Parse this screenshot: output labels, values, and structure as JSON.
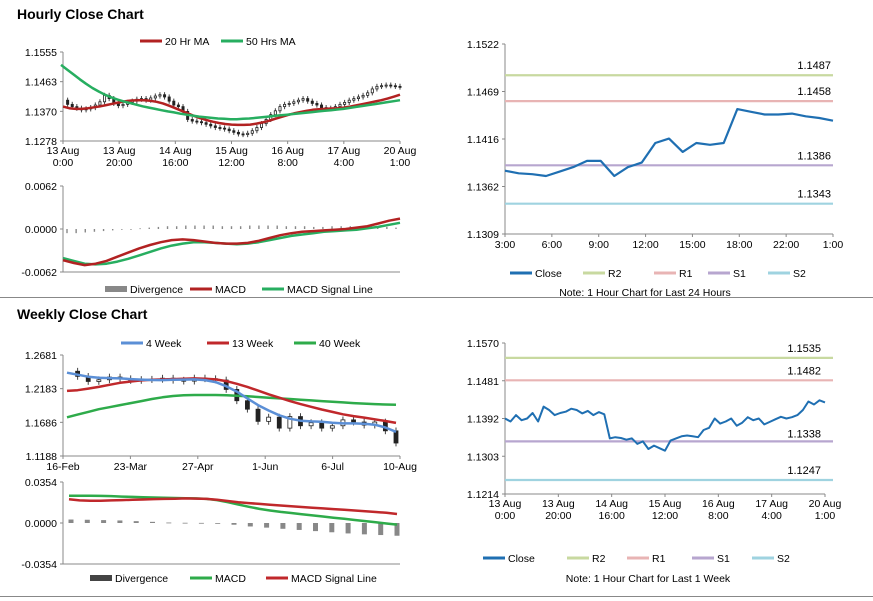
{
  "titles": {
    "hourly": "Hourly Close Chart",
    "weekly": "Weekly Close Chart"
  },
  "colors": {
    "ma20": "#b22222",
    "ma50": "#27ae60",
    "close": "#1f6fb2",
    "candle": "#444444",
    "r2": "#c8d9a0",
    "r1": "#e8b4b4",
    "s1": "#b7a6cf",
    "s2": "#9fd3e0",
    "divergence": "#888888",
    "week4": "#5b8fd6",
    "week13": "#c0282b",
    "week40": "#2eab4a"
  },
  "chart_data": [
    {
      "id": "hourly_price",
      "type": "candlestick+line",
      "title": "Hourly Close Chart",
      "y_ticks": [
        "1.1555",
        "1.1463",
        "1.1370",
        "1.1278"
      ],
      "ylim": [
        1.1278,
        1.1555
      ],
      "x_ticks": [
        [
          "13 Aug",
          "0:00"
        ],
        [
          "13 Aug",
          "20:00"
        ],
        [
          "14 Aug",
          "16:00"
        ],
        [
          "15 Aug",
          "12:00"
        ],
        [
          "16 Aug",
          "8:00"
        ],
        [
          "17 Aug",
          "4:00"
        ],
        [
          "20 Aug",
          "1:00"
        ]
      ],
      "legend": [
        "20 Hr MA",
        "50 Hrs MA"
      ],
      "close": [
        1.1405,
        1.1392,
        1.1385,
        1.138,
        1.1375,
        1.1378,
        1.1382,
        1.139,
        1.14,
        1.142,
        1.141,
        1.1395,
        1.1388,
        1.1392,
        1.1398,
        1.1402,
        1.1408,
        1.141,
        1.1405,
        1.1412,
        1.1418,
        1.1422,
        1.1415,
        1.1402,
        1.139,
        1.1385,
        1.137,
        1.1345,
        1.134,
        1.1338,
        1.1335,
        1.133,
        1.1325,
        1.132,
        1.1318,
        1.1315,
        1.131,
        1.1305,
        1.13,
        1.1298,
        1.1302,
        1.131,
        1.132,
        1.1332,
        1.1345,
        1.136,
        1.1372,
        1.1385,
        1.1392,
        1.1395,
        1.14,
        1.1405,
        1.141,
        1.1402,
        1.1395,
        1.139,
        1.1382,
        1.1378,
        1.138,
        1.1385,
        1.1392,
        1.1398,
        1.1405,
        1.141,
        1.1415,
        1.142,
        1.1428,
        1.144,
        1.1448,
        1.145,
        1.1452,
        1.145,
        1.1448,
        1.1446
      ],
      "ma20": [
        1.1385,
        1.138,
        1.1378,
        1.1378,
        1.138,
        1.1383,
        1.1386,
        1.139,
        1.1394,
        1.1398,
        1.1402,
        1.1404,
        1.1405,
        1.1405,
        1.1403,
        1.14,
        1.1395,
        1.1388,
        1.138,
        1.1372,
        1.1364,
        1.1356,
        1.1349,
        1.1343,
        1.1338,
        1.1334,
        1.1331,
        1.1329,
        1.1328,
        1.1328,
        1.1329,
        1.1332,
        1.1336,
        1.1341,
        1.1347,
        1.1353,
        1.1359,
        1.1364,
        1.1368,
        1.1372,
        1.1375,
        1.1377,
        1.1378,
        1.1379,
        1.138,
        1.1382,
        1.1385,
        1.1389,
        1.1393,
        1.1397,
        1.1401,
        1.1405,
        1.141,
        1.1416,
        1.1422
      ],
      "ma50": [
        1.1515,
        1.15,
        1.1485,
        1.147,
        1.1456,
        1.1443,
        1.1432,
        1.1422,
        1.1414,
        1.1407,
        1.1401,
        1.1396,
        1.1391,
        1.1386,
        1.1382,
        1.1378,
        1.1374,
        1.137,
        1.1367,
        1.1363,
        1.136,
        1.1357,
        1.1354,
        1.1352,
        1.135,
        1.1348,
        1.1347,
        1.1346,
        1.1346,
        1.1347,
        1.1348,
        1.135,
        1.1352,
        1.1354,
        1.1356,
        1.1358,
        1.136,
        1.1362,
        1.1364,
        1.1366,
        1.1368,
        1.137,
        1.1372,
        1.1374,
        1.1376,
        1.1378,
        1.1381,
        1.1384,
        1.1387,
        1.139,
        1.1393,
        1.1396,
        1.1399,
        1.1402,
        1.1405
      ]
    },
    {
      "id": "hourly_macd",
      "type": "bar+line",
      "y_ticks": [
        "0.0062",
        "0.0000",
        "-0.0062"
      ],
      "ylim": [
        -0.0062,
        0.0062
      ],
      "legend": [
        "Divergence",
        "MACD",
        "MACD Signal Line"
      ],
      "macd": [
        -0.0045,
        -0.0049,
        -0.0052,
        -0.005,
        -0.0046,
        -0.004,
        -0.0034,
        -0.0028,
        -0.0023,
        -0.0019,
        -0.0016,
        -0.0015,
        -0.0016,
        -0.0018,
        -0.002,
        -0.0021,
        -0.0021,
        -0.002,
        -0.0017,
        -0.0013,
        -0.0009,
        -0.0006,
        -0.0004,
        -0.0003,
        -0.0002,
        -0.0001,
        0.0,
        0.0002,
        0.0004,
        0.0008,
        0.0012,
        0.0015
      ],
      "signal": [
        -0.0042,
        -0.0046,
        -0.005,
        -0.0051,
        -0.005,
        -0.0047,
        -0.0043,
        -0.0038,
        -0.0033,
        -0.0028,
        -0.0024,
        -0.0021,
        -0.0019,
        -0.0019,
        -0.002,
        -0.0021,
        -0.0022,
        -0.0021,
        -0.0019,
        -0.0016,
        -0.0013,
        -0.001,
        -0.0008,
        -0.0006,
        -0.0004,
        -0.0003,
        -0.0002,
        -0.0001,
        0.0001,
        0.0003,
        0.0006,
        0.0009
      ],
      "divergence": [
        -0.0006,
        -0.0006,
        -0.0005,
        -0.0004,
        -0.0003,
        -0.0002,
        -0.0001,
        0.0,
        0.0001,
        0.0002,
        0.0003,
        0.0004,
        0.0004,
        0.0005,
        0.0005,
        0.0005,
        0.0005,
        0.0004,
        0.0004,
        0.0004,
        0.0005,
        0.0005,
        0.0005,
        0.0005,
        0.0004,
        0.0004,
        0.0004,
        0.0003,
        0.0003,
        0.0004,
        0.0004,
        0.0004,
        0.0003,
        0.0003,
        0.0003,
        0.0003,
        0.0002
      ]
    },
    {
      "id": "hourly_pivot",
      "type": "line",
      "y_ticks": [
        "1.1522",
        "1.1469",
        "1.1416",
        "1.1362",
        "1.1309"
      ],
      "ylim": [
        1.1309,
        1.1522
      ],
      "x_ticks": [
        "3:00",
        "6:00",
        "9:00",
        "12:00",
        "15:00",
        "18:00",
        "22:00",
        "1:00"
      ],
      "close": [
        1.138,
        1.1377,
        1.1376,
        1.1374,
        1.1379,
        1.1384,
        1.1391,
        1.1391,
        1.1374,
        1.1384,
        1.1389,
        1.1411,
        1.1416,
        1.1401,
        1.1411,
        1.1409,
        1.1411,
        1.1449,
        1.1446,
        1.1443,
        1.1443,
        1.1444,
        1.1441,
        1.1439,
        1.1436
      ],
      "levels": {
        "R2": 1.1487,
        "R1": 1.1458,
        "S1": 1.1386,
        "S2": 1.1343
      },
      "level_labels": {
        "R2": "1.1487",
        "R1": "1.1458",
        "S1": "1.1386",
        "S2": "1.1343"
      },
      "legend": [
        "Close",
        "R2",
        "R1",
        "S1",
        "S2"
      ],
      "note": "Note: 1 Hour Chart for Last 24 Hours"
    },
    {
      "id": "weekly_price",
      "type": "candlestick+line",
      "title": "Weekly Close Chart",
      "y_ticks": [
        "1.2681",
        "1.2183",
        "1.1686",
        "1.1188"
      ],
      "ylim": [
        1.1188,
        1.2681
      ],
      "x_ticks": [
        "16-Feb",
        "23-Mar",
        "27-Apr",
        "1-Jun",
        "6-Jul",
        "10-Aug"
      ],
      "legend": [
        "4 Week",
        "13 Week",
        "40 Week"
      ],
      "close": [
        1.2441,
        1.2365,
        1.229,
        1.2315,
        1.2355,
        1.233,
        1.2305,
        1.2318,
        1.2322,
        1.2338,
        1.2308,
        1.2295,
        1.234,
        1.233,
        1.2311,
        1.2172,
        1.2005,
        1.188,
        1.17,
        1.1762,
        1.16,
        1.1771,
        1.1635,
        1.168,
        1.16,
        1.1635,
        1.1722,
        1.169,
        1.1645,
        1.169,
        1.156,
        1.138
      ],
      "week4": [
        1.242,
        1.239,
        1.236,
        1.2345,
        1.234,
        1.2335,
        1.2325,
        1.2318,
        1.2312,
        1.231,
        1.2315,
        1.2318,
        1.232,
        1.231,
        1.228,
        1.222,
        1.214,
        1.204,
        1.194,
        1.186,
        1.179,
        1.174,
        1.171,
        1.17,
        1.1695,
        1.168,
        1.167,
        1.167,
        1.1665,
        1.165,
        1.161,
        1.1545
      ],
      "week13": [
        1.215,
        1.216,
        1.2185,
        1.221,
        1.224,
        1.227,
        1.229,
        1.2305,
        1.2315,
        1.232,
        1.2325,
        1.233,
        1.2335,
        1.233,
        1.232,
        1.2295,
        1.2255,
        1.221,
        1.2155,
        1.21,
        1.205,
        1.2,
        1.1955,
        1.1915,
        1.1875,
        1.184,
        1.1805,
        1.1778,
        1.1755,
        1.173,
        1.1705,
        1.1678
      ],
      "week40": [
        1.176,
        1.18,
        1.184,
        1.188,
        1.191,
        1.194,
        1.197,
        1.2,
        1.203,
        1.2055,
        1.2075,
        1.2085,
        1.209,
        1.209,
        1.209,
        1.2085,
        1.208,
        1.207,
        1.206,
        1.205,
        1.204,
        1.203,
        1.202,
        1.201,
        1.2,
        1.199,
        1.198,
        1.197,
        1.1962,
        1.1955,
        1.195,
        1.1945
      ]
    },
    {
      "id": "weekly_macd",
      "type": "bar+line",
      "y_ticks": [
        "0.0354",
        "0.0000",
        "-0.0354"
      ],
      "ylim": [
        -0.0354,
        0.0354
      ],
      "legend": [
        "Divergence",
        "MACD",
        "MACD Signal Line"
      ],
      "macd": [
        0.0235,
        0.0236,
        0.0236,
        0.0234,
        0.0232,
        0.0228,
        0.0225,
        0.0222,
        0.022,
        0.0218,
        0.0216,
        0.0214,
        0.0212,
        0.0208,
        0.0198,
        0.018,
        0.016,
        0.014,
        0.0122,
        0.0108,
        0.0096,
        0.0086,
        0.0076,
        0.0066,
        0.0056,
        0.0046,
        0.0036,
        0.0026,
        0.0016,
        0.0006,
        -0.0004,
        -0.0014
      ],
      "signal": [
        0.0205,
        0.0195,
        0.0192,
        0.0192,
        0.0195,
        0.0198,
        0.02,
        0.0203,
        0.0206,
        0.0208,
        0.021,
        0.0212,
        0.0211,
        0.0208,
        0.02,
        0.019,
        0.018,
        0.0172,
        0.0165,
        0.0158,
        0.0151,
        0.0144,
        0.0138,
        0.0132,
        0.0126,
        0.012,
        0.0114,
        0.0108,
        0.0102,
        0.0095,
        0.0088,
        0.0078
      ],
      "divergence": [
        0.003,
        0.0028,
        0.0025,
        0.0022,
        0.0016,
        0.001,
        0.0004,
        0.0002,
        0.0001,
        0.0,
        -0.0015,
        -0.003,
        -0.004,
        -0.005,
        -0.006,
        -0.007,
        -0.008,
        -0.009,
        -0.0098,
        -0.0104,
        -0.011
      ]
    },
    {
      "id": "weekly_pivot",
      "type": "line",
      "y_ticks": [
        "1.1570",
        "1.1481",
        "1.1392",
        "1.1303",
        "1.1214"
      ],
      "ylim": [
        1.1214,
        1.157
      ],
      "x_ticks": [
        [
          "13 Aug",
          "0:00"
        ],
        [
          "13 Aug",
          "20:00"
        ],
        [
          "14 Aug",
          "16:00"
        ],
        [
          "15 Aug",
          "12:00"
        ],
        [
          "16 Aug",
          "8:00"
        ],
        [
          "17 Aug",
          "4:00"
        ],
        [
          "20 Aug",
          "1:00"
        ]
      ],
      "close": [
        1.1392,
        1.1385,
        1.14,
        1.1388,
        1.1392,
        1.1405,
        1.1385,
        1.142,
        1.1412,
        1.14,
        1.1405,
        1.1408,
        1.1415,
        1.1412,
        1.1404,
        1.141,
        1.14,
        1.1407,
        1.1402,
        1.1345,
        1.1348,
        1.1346,
        1.1342,
        1.1345,
        1.1332,
        1.1338,
        1.132,
        1.1328,
        1.1322,
        1.1316,
        1.134,
        1.1345,
        1.135,
        1.1352,
        1.135,
        1.1348,
        1.1365,
        1.137,
        1.1392,
        1.138,
        1.1385,
        1.1392,
        1.1375,
        1.1382,
        1.1395,
        1.1388,
        1.1392,
        1.1378,
        1.1384,
        1.139,
        1.1396,
        1.1392,
        1.1395,
        1.14,
        1.1412,
        1.1432,
        1.1425,
        1.1435,
        1.143
      ],
      "levels": {
        "R2": 1.1535,
        "R1": 1.1482,
        "S1": 1.1338,
        "S2": 1.1247
      },
      "level_labels": {
        "R2": "1.1535",
        "R1": "1.1482",
        "S1": "1.1338",
        "S2": "1.1247"
      },
      "legend": [
        "Close",
        "R2",
        "R1",
        "S1",
        "S2"
      ],
      "note": "Note: 1 Hour Chart for Last 1 Week"
    }
  ]
}
